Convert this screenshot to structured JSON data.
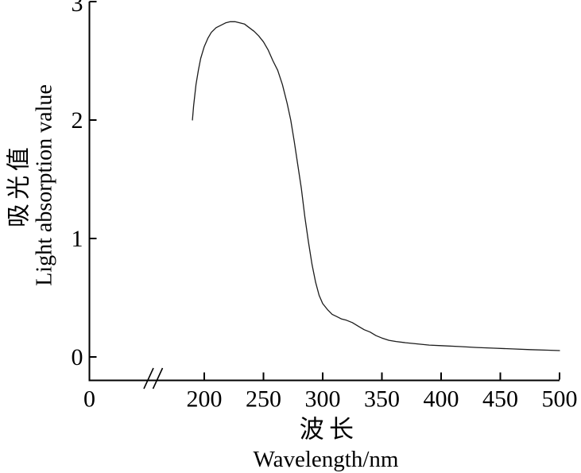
{
  "figure": {
    "background_color": "#ffffff",
    "axis_color": "#000000",
    "curve_color": "#1c1c1c"
  },
  "chart_data": {
    "type": "line",
    "title": "",
    "xlabel": "波长 Wavelength/nm",
    "ylabel": "吸光值 Light absorption value",
    "xlabel_cn": "波长",
    "xlabel_en": "Wavelength/nm",
    "ylabel_cn": "吸光值",
    "ylabel_en": "Light absorption value",
    "xlim": [
      0,
      500
    ],
    "ylim": [
      0,
      3
    ],
    "xticks": [
      0,
      200,
      250,
      300,
      350,
      400,
      450,
      500
    ],
    "yticks": [
      0,
      1,
      2,
      3
    ],
    "axis_break": true,
    "grid": false,
    "legend": "none",
    "series": [
      {
        "name": "light-absorption-spectrum",
        "x": [
          190,
          191,
          193,
          195,
          197,
          200,
          203,
          206,
          210,
          214,
          218,
          222,
          226,
          230,
          234,
          238,
          242,
          246,
          250,
          254,
          258,
          262,
          266,
          270,
          273,
          276,
          279,
          282,
          285,
          288,
          291,
          294,
          297,
          300,
          304,
          308,
          312,
          316,
          320,
          325,
          330,
          335,
          340,
          345,
          350,
          356,
          362,
          370,
          380,
          390,
          400,
          415,
          430,
          445,
          460,
          475,
          490,
          500
        ],
        "y": [
          2.0,
          2.12,
          2.3,
          2.42,
          2.52,
          2.62,
          2.69,
          2.74,
          2.78,
          2.8,
          2.82,
          2.83,
          2.83,
          2.82,
          2.81,
          2.78,
          2.75,
          2.71,
          2.66,
          2.59,
          2.5,
          2.42,
          2.3,
          2.14,
          2.0,
          1.82,
          1.62,
          1.42,
          1.18,
          0.97,
          0.78,
          0.63,
          0.52,
          0.45,
          0.4,
          0.36,
          0.34,
          0.32,
          0.31,
          0.29,
          0.26,
          0.23,
          0.21,
          0.18,
          0.16,
          0.14,
          0.13,
          0.12,
          0.11,
          0.1,
          0.095,
          0.088,
          0.08,
          0.074,
          0.068,
          0.062,
          0.057,
          0.054
        ]
      }
    ],
    "annotations": {
      "peak_value": 2.83,
      "peak_wavelength_nm": 225
    }
  }
}
